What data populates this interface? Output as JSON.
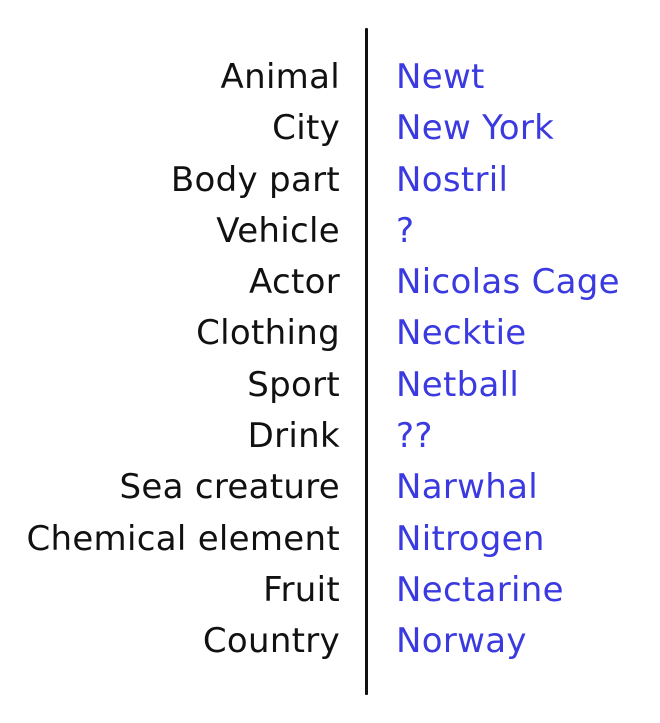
{
  "rows": [
    {
      "category": "Animal",
      "answer": "Newt"
    },
    {
      "category": "City",
      "answer": "New York"
    },
    {
      "category": "Body part",
      "answer": "Nostril"
    },
    {
      "category": "Vehicle",
      "answer": "?"
    },
    {
      "category": "Actor",
      "answer": "Nicolas Cage"
    },
    {
      "category": "Clothing",
      "answer": "Necktie"
    },
    {
      "category": "Sport",
      "answer": "Netball"
    },
    {
      "category": "Drink",
      "answer": "??"
    },
    {
      "category": "Sea creature",
      "answer": "Narwhal"
    },
    {
      "category": "Chemical element",
      "answer": "Nitrogen"
    },
    {
      "category": "Fruit",
      "answer": "Nectarine"
    },
    {
      "category": "Country",
      "answer": "Norway"
    }
  ],
  "colors": {
    "category_text": "#111111",
    "answer_text": "#3a3ae0",
    "divider": "#111111",
    "background": "#ffffff"
  }
}
